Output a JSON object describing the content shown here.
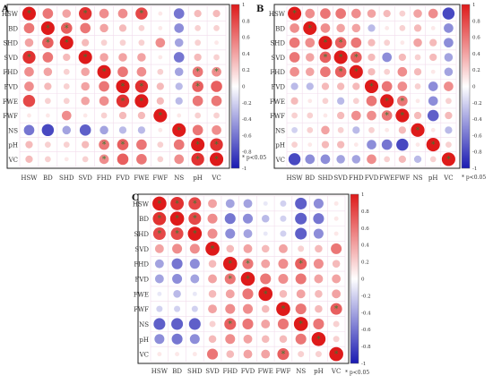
{
  "chart_data": [
    {
      "type": "heatmap",
      "panel_label": "A",
      "variables": [
        "HSW",
        "BD",
        "SHD",
        "SVD",
        "FHD",
        "FVD",
        "FWE",
        "FWF",
        "NS",
        "pH",
        "VC"
      ],
      "colorbar_ticks": [
        "1",
        "0.8",
        "0.6",
        "0.4",
        "0.2",
        "0",
        "-0.2",
        "-0.4",
        "-0.6",
        "-0.8",
        "-1"
      ],
      "significance_note": "* p<0.05",
      "matrix": [
        [
          1,
          0.6,
          0.4,
          0.9,
          0.5,
          0.5,
          0.8,
          0.1,
          -0.6,
          0.3,
          0.3
        ],
        [
          0.6,
          1,
          0.7,
          0.6,
          0.4,
          0.3,
          0.2,
          0.1,
          -0.5,
          0.2,
          0.2
        ],
        [
          0.4,
          0.7,
          1,
          0.3,
          0.2,
          0.2,
          0.2,
          0.5,
          -0.4,
          0.2,
          0.1
        ],
        [
          0.9,
          0.6,
          0.3,
          1,
          0.4,
          0.4,
          0.4,
          0.1,
          -0.6,
          0.3,
          0.2
        ],
        [
          0.5,
          0.4,
          0.2,
          0.4,
          1,
          0.6,
          0.5,
          0.2,
          -0.4,
          0.6,
          0.5
        ],
        [
          0.5,
          0.3,
          0.2,
          0.4,
          0.6,
          1,
          0.9,
          0.3,
          -0.3,
          0.7,
          0.7
        ],
        [
          0.8,
          0.2,
          0.2,
          0.4,
          0.5,
          0.9,
          1,
          0.3,
          -0.3,
          0.6,
          0.6
        ],
        [
          0.1,
          0.1,
          0.5,
          0.1,
          0.2,
          0.3,
          0.3,
          1,
          0.1,
          0.2,
          0.2
        ],
        [
          -0.6,
          -0.8,
          -0.4,
          -0.7,
          -0.4,
          -0.3,
          -0.3,
          0.1,
          1,
          0.6,
          0.5
        ],
        [
          0.3,
          0.2,
          0.2,
          0.3,
          0.6,
          0.7,
          0.6,
          0.2,
          0.6,
          1,
          0.9
        ],
        [
          0.3,
          0.2,
          0.1,
          0.2,
          0.5,
          0.7,
          0.6,
          0.2,
          0.5,
          0.9,
          1
        ]
      ],
      "significant": [
        [
          0,
          0
        ],
        [
          0,
          3
        ],
        [
          0,
          6
        ],
        [
          1,
          1
        ],
        [
          1,
          2
        ],
        [
          2,
          1
        ],
        [
          2,
          2
        ],
        [
          3,
          0
        ],
        [
          3,
          3
        ],
        [
          4,
          4
        ],
        [
          5,
          5
        ],
        [
          5,
          6
        ],
        [
          6,
          5
        ],
        [
          6,
          6
        ],
        [
          7,
          7
        ],
        [
          8,
          8
        ],
        [
          9,
          9
        ],
        [
          9,
          10
        ],
        [
          10,
          9
        ],
        [
          10,
          10
        ],
        [
          4,
          9
        ],
        [
          5,
          9
        ],
        [
          9,
          4
        ],
        [
          9,
          5
        ],
        [
          4,
          10
        ],
        [
          10,
          4
        ]
      ]
    },
    {
      "type": "heatmap",
      "panel_label": "B",
      "variables": [
        "HSW",
        "BD",
        "SHD",
        "SVD",
        "FHD",
        "FVD",
        "FWE",
        "FWF",
        "NS",
        "pH",
        "VC"
      ],
      "colorbar_ticks": [
        "1",
        "0.8",
        "0.6",
        "0.4",
        "0.2",
        "0",
        "-0.2",
        "-0.4",
        "-0.6",
        "-0.8",
        "-1"
      ],
      "significance_note": "* p<0.05",
      "matrix": [
        [
          1,
          0.5,
          0.6,
          0.6,
          0.5,
          0.4,
          0.3,
          0.2,
          0.4,
          0.5,
          -0.8
        ],
        [
          0.5,
          1,
          0.5,
          0.4,
          0.4,
          -0.3,
          0.1,
          0.2,
          0.3,
          0.1,
          -0.5
        ],
        [
          0.6,
          0.5,
          1,
          0.7,
          0.6,
          0.3,
          0.2,
          0.1,
          0.4,
          0.3,
          -0.5
        ],
        [
          0.6,
          0.4,
          0.7,
          1,
          0.7,
          0.3,
          -0.5,
          0.3,
          0.2,
          0.3,
          -0.4
        ],
        [
          0.5,
          0.4,
          0.6,
          0.7,
          1,
          0.3,
          0.2,
          0.5,
          0.3,
          0.1,
          -0.4
        ],
        [
          -0.3,
          -0.3,
          0.3,
          0.3,
          0.3,
          1,
          0.6,
          0.5,
          0.2,
          -0.5,
          0.5
        ],
        [
          0.3,
          0.1,
          0.2,
          -0.3,
          0.2,
          0.6,
          1,
          0.6,
          0.1,
          -0.5,
          0.2
        ],
        [
          0.2,
          0.2,
          0.1,
          0.3,
          0.5,
          0.5,
          0.6,
          1,
          0.3,
          -0.7,
          0.3
        ],
        [
          -0.2,
          0.2,
          0.4,
          0.2,
          -0.3,
          0.2,
          0.1,
          0.3,
          1,
          0.1,
          -0.3
        ],
        [
          0.2,
          0.1,
          0.3,
          0.3,
          0.1,
          -0.5,
          -0.6,
          -0.8,
          0.1,
          1,
          0.2
        ],
        [
          -0.8,
          -0.5,
          -0.5,
          -0.4,
          -0.4,
          0.5,
          0.2,
          0.3,
          -0.3,
          0.2,
          1
        ]
      ],
      "significant": [
        [
          0,
          0
        ],
        [
          1,
          1
        ],
        [
          2,
          2
        ],
        [
          2,
          3
        ],
        [
          3,
          2
        ],
        [
          3,
          3
        ],
        [
          3,
          4
        ],
        [
          4,
          3
        ],
        [
          4,
          4
        ],
        [
          5,
          5
        ],
        [
          6,
          6
        ],
        [
          6,
          7
        ],
        [
          7,
          6
        ],
        [
          7,
          7
        ],
        [
          8,
          8
        ],
        [
          9,
          9
        ],
        [
          10,
          10
        ]
      ]
    },
    {
      "type": "heatmap",
      "panel_label": "C",
      "variables": [
        "HSW",
        "BD",
        "SHD",
        "SVD",
        "FHD",
        "FVD",
        "FWE",
        "FWF",
        "NS",
        "pH",
        "VC"
      ],
      "colorbar_ticks": [
        "1",
        "0.8",
        "0.6",
        "0.4",
        "0.2",
        "0",
        "-0.2",
        "-0.4",
        "-0.6",
        "-0.8",
        "-1"
      ],
      "significance_note": "* p<0.05",
      "matrix": [
        [
          1,
          0.9,
          0.8,
          0.4,
          -0.4,
          -0.4,
          -0.1,
          -0.2,
          -0.7,
          -0.5,
          0.1
        ],
        [
          0.9,
          1,
          0.8,
          0.5,
          -0.6,
          -0.5,
          -0.3,
          -0.2,
          -0.7,
          -0.6,
          0.1
        ],
        [
          0.8,
          0.8,
          1,
          0.5,
          -0.5,
          -0.4,
          -0.1,
          -0.2,
          -0.7,
          -0.5,
          0.1
        ],
        [
          0.4,
          0.5,
          0.5,
          1,
          0.3,
          0.4,
          0.3,
          0.4,
          0.2,
          0.3,
          0.6
        ],
        [
          -0.4,
          -0.6,
          -0.5,
          0.3,
          1,
          0.6,
          0.4,
          0.5,
          0.7,
          0.5,
          0.3
        ],
        [
          -0.4,
          -0.5,
          -0.4,
          0.4,
          0.6,
          1,
          0.6,
          0.5,
          0.6,
          0.4,
          0.4
        ],
        [
          -0.1,
          -0.3,
          -0.1,
          0.3,
          0.4,
          0.6,
          1,
          0.3,
          0.4,
          0.3,
          0.4
        ],
        [
          -0.2,
          -0.2,
          -0.2,
          0.4,
          0.5,
          0.5,
          0.3,
          1,
          0.6,
          0.3,
          0.7
        ],
        [
          -0.7,
          -0.7,
          -0.7,
          0.2,
          0.7,
          0.6,
          0.4,
          0.6,
          1,
          0.6,
          0.2
        ],
        [
          -0.5,
          -0.6,
          -0.5,
          0.3,
          0.5,
          0.4,
          0.3,
          0.3,
          0.6,
          1,
          0.2
        ],
        [
          0.1,
          0.1,
          0.1,
          0.6,
          0.3,
          0.4,
          0.4,
          0.7,
          0.2,
          0.2,
          1
        ]
      ],
      "significant": [
        [
          0,
          0
        ],
        [
          0,
          1
        ],
        [
          0,
          2
        ],
        [
          1,
          0
        ],
        [
          1,
          1
        ],
        [
          1,
          2
        ],
        [
          2,
          0
        ],
        [
          2,
          1
        ],
        [
          2,
          2
        ],
        [
          3,
          3
        ],
        [
          4,
          4
        ],
        [
          4,
          5
        ],
        [
          5,
          4
        ],
        [
          5,
          5
        ],
        [
          6,
          6
        ],
        [
          7,
          7
        ],
        [
          8,
          8
        ],
        [
          8,
          4
        ],
        [
          4,
          8
        ],
        [
          9,
          9
        ],
        [
          10,
          10
        ],
        [
          7,
          10
        ],
        [
          10,
          7
        ]
      ]
    }
  ]
}
